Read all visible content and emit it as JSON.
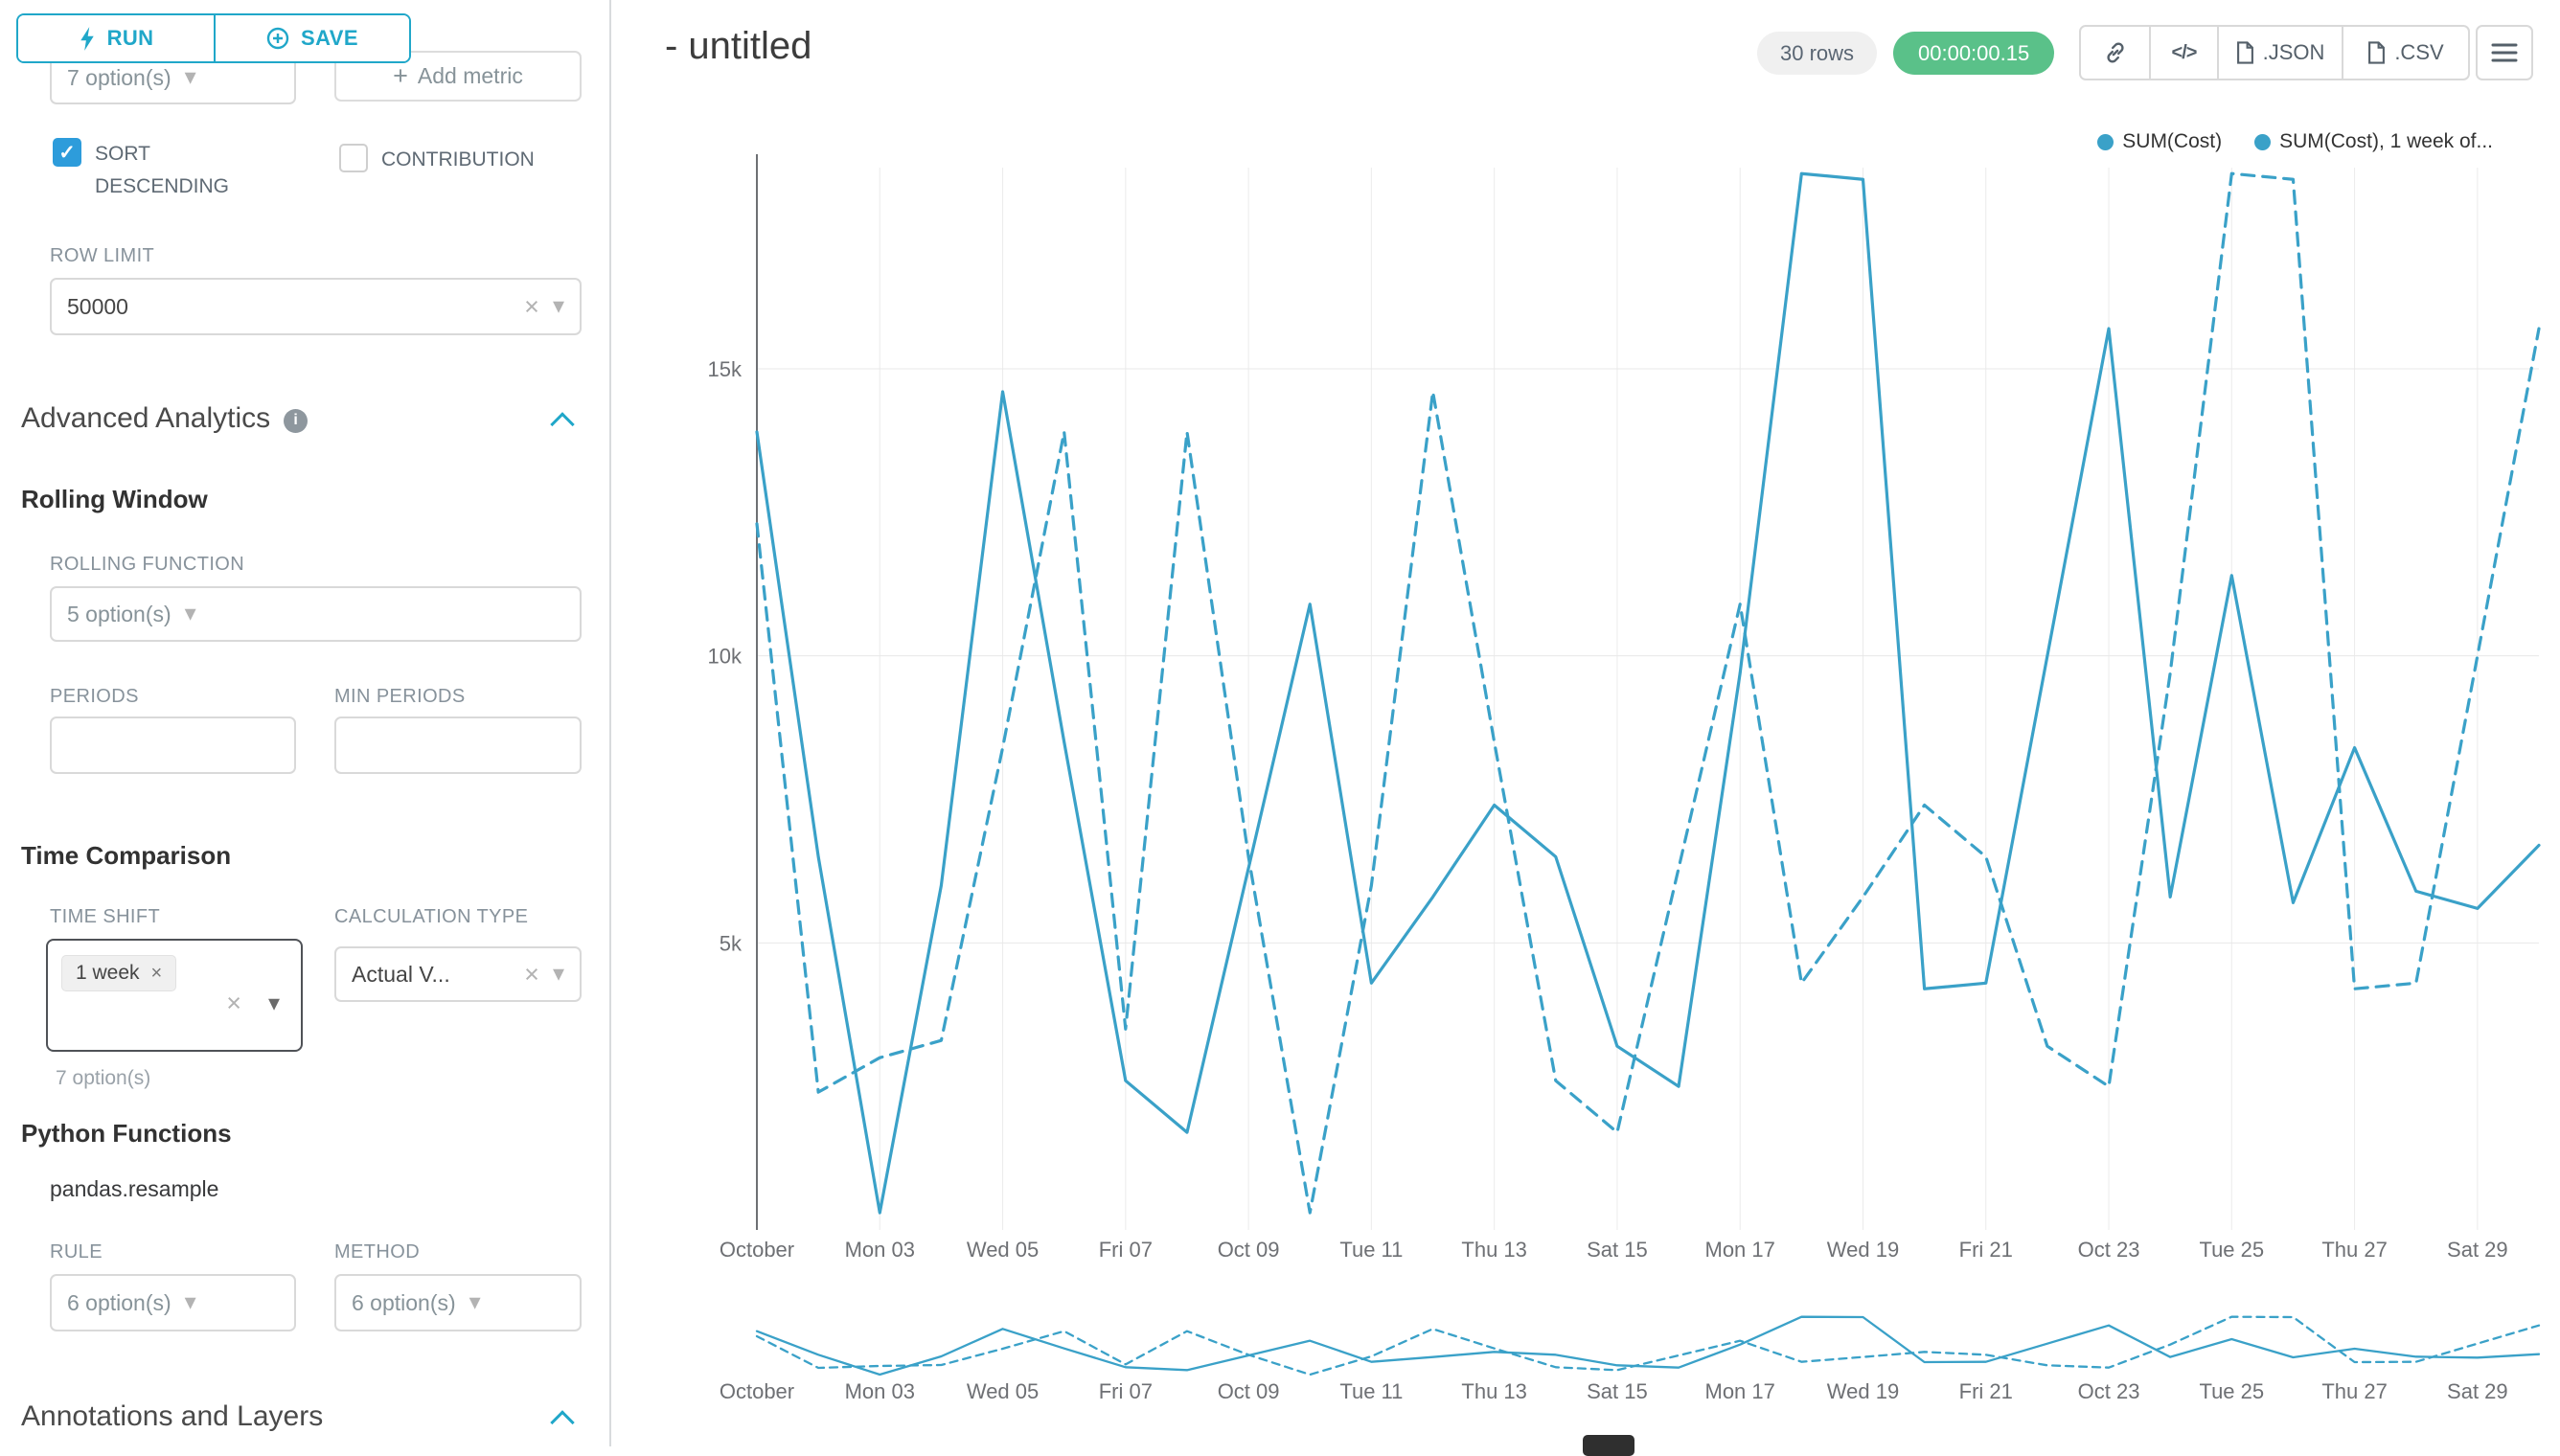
{
  "theme": {
    "accent": "#20a7c9",
    "success": "#5ac189",
    "line_color": "#3aa1c8"
  },
  "sidebar": {
    "run_label": "RUN",
    "save_label": "SAVE",
    "metric_select_value": "7 option(s)",
    "add_metric_label": "Add metric",
    "sort_descending_label": "SORT DESCENDING",
    "sort_descending_checked": true,
    "contribution_label": "CONTRIBUTION",
    "contribution_checked": false,
    "row_limit_label": "ROW LIMIT",
    "row_limit_value": "50000",
    "advanced_analytics_title": "Advanced Analytics",
    "rolling_window_title": "Rolling Window",
    "rolling_function_label": "ROLLING FUNCTION",
    "rolling_function_value": "5 option(s)",
    "periods_label": "PERIODS",
    "min_periods_label": "MIN PERIODS",
    "time_comparison_title": "Time Comparison",
    "time_shift_label": "TIME SHIFT",
    "time_shift_tag": "1 week",
    "time_shift_hint": "7 option(s)",
    "calculation_type_label": "CALCULATION TYPE",
    "calculation_type_value": "Actual V...",
    "python_functions_title": "Python Functions",
    "python_function_item": "pandas.resample",
    "rule_label": "RULE",
    "rule_value": "6 option(s)",
    "method_label": "METHOD",
    "method_value": "6 option(s)",
    "annotations_title": "Annotations and Layers"
  },
  "header": {
    "title": "- untitled",
    "rows_badge": "30 rows",
    "timer_badge": "00:00:00.15",
    "export_json_label": ".JSON",
    "export_csv_label": ".CSV"
  },
  "chart_data": {
    "type": "line",
    "title": "",
    "x_count": 30,
    "x_tick_days": [
      1,
      3,
      5,
      7,
      9,
      11,
      13,
      15,
      17,
      19,
      21,
      23,
      25,
      27,
      29
    ],
    "x_tick_labels": [
      "October",
      "Mon 03",
      "Wed 05",
      "Fri 07",
      "Oct 09",
      "Tue 11",
      "Thu 13",
      "Sat 15",
      "Mon 17",
      "Wed 19",
      "Fri 21",
      "Oct 23",
      "Tue 25",
      "Thu 27",
      "Sat 29"
    ],
    "y_ticks": [
      {
        "label": "5k",
        "value": 5000
      },
      {
        "label": "10k",
        "value": 10000
      },
      {
        "label": "15k",
        "value": 15000
      }
    ],
    "ylim": [
      0,
      18600
    ],
    "grid": true,
    "legend_position": "top-right",
    "has_mini_preview": true,
    "series": [
      {
        "name": "SUM(Cost)",
        "style": "solid",
        "color": "#3AA1C8",
        "values": [
          13900,
          6500,
          300,
          6000,
          14600,
          8500,
          2600,
          1700,
          6300,
          10900,
          4300,
          5800,
          7400,
          6500,
          3200,
          2500,
          9700,
          18400,
          18300,
          4200,
          4300,
          10000,
          15700,
          5800,
          11400,
          5700,
          8400,
          5900,
          5600,
          6700
        ]
      },
      {
        "name": "SUM(Cost), 1 week of...",
        "style": "dashed",
        "color": "#3AA1C8",
        "values": [
          12300,
          2400,
          3000,
          3300,
          8400,
          13900,
          3500,
          13900,
          6500,
          300,
          6000,
          14600,
          8500,
          2600,
          1700,
          6300,
          10900,
          4300,
          5800,
          7400,
          6500,
          3200,
          2500,
          9700,
          18400,
          18300,
          4200,
          4300,
          10000,
          15700
        ]
      }
    ]
  }
}
